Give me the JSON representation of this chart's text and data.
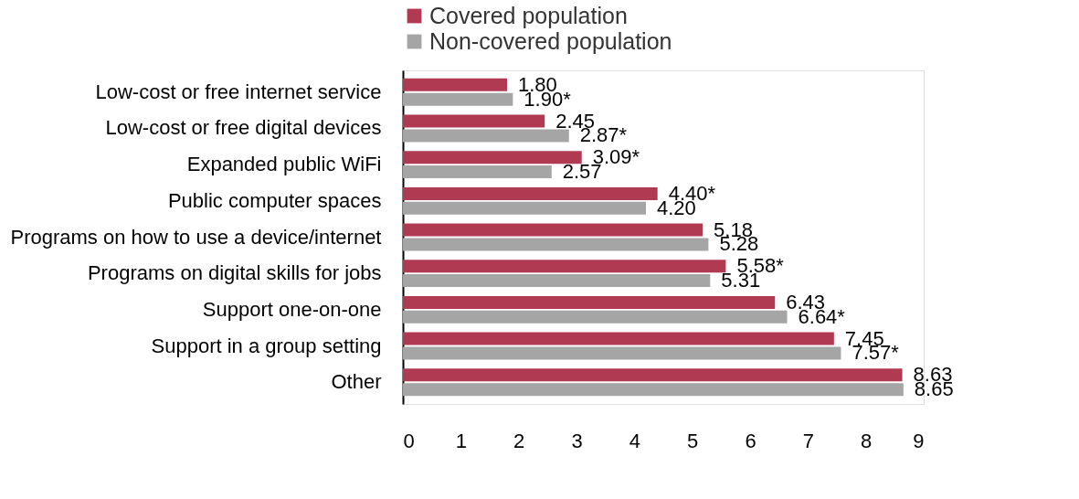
{
  "chart_data": {
    "type": "bar",
    "orientation": "horizontal",
    "categories": [
      "Low-cost or free internet service",
      "Low-cost or free digital devices",
      "Expanded public WiFi",
      "Public computer spaces",
      "Programs on how to use a device/internet",
      "Programs on digital skills for jobs",
      "Support one-on-one",
      "Support in a group setting",
      "Other"
    ],
    "series": [
      {
        "name": "Covered population",
        "color": "#b03a52",
        "values": [
          1.8,
          2.45,
          3.09,
          4.4,
          5.18,
          5.58,
          6.43,
          7.45,
          8.63
        ],
        "value_labels": [
          "1.80",
          "2.45",
          "3.09*",
          "4.40*",
          "5.18",
          "5.58*",
          "6.43",
          "7.45",
          "8.63"
        ]
      },
      {
        "name": "Non-covered population",
        "color": "#a5a5a5",
        "values": [
          1.9,
          2.87,
          2.57,
          4.2,
          5.28,
          5.31,
          6.64,
          7.57,
          8.65
        ],
        "value_labels": [
          "1.90*",
          "2.87*",
          "2.57",
          "4.20",
          "5.28",
          "5.31",
          "6.64*",
          "7.57*",
          "8.65"
        ]
      }
    ],
    "xlim": [
      0,
      9
    ],
    "xticks": [
      0,
      1,
      2,
      3,
      4,
      5,
      6,
      7,
      8,
      9
    ],
    "legend": "top",
    "grid": false
  }
}
